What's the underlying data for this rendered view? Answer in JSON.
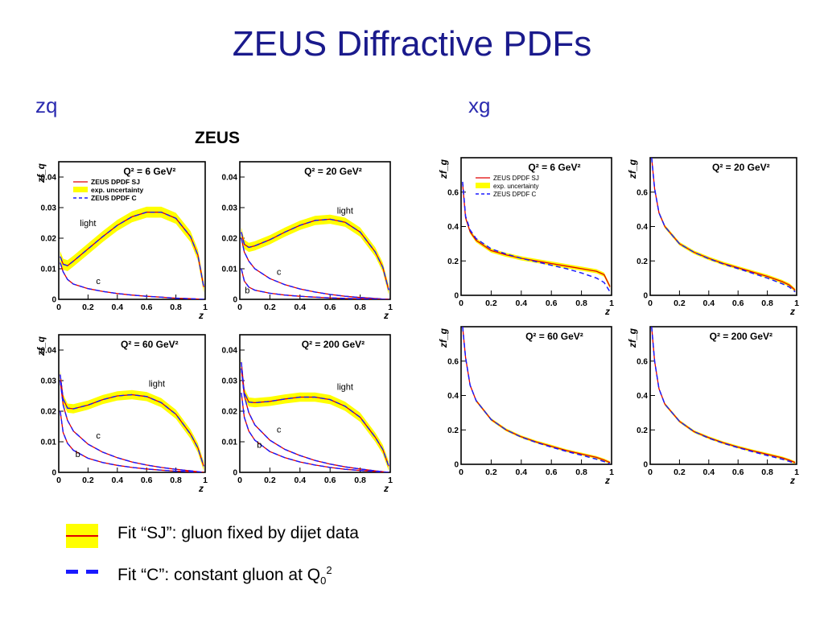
{
  "slide": {
    "title": "ZEUS Diffractive PDFs",
    "left_section": "zq",
    "right_section": "xg",
    "experiment_label": "ZEUS"
  },
  "legend": {
    "sj_text": "Fit “SJ”: gluon fixed by dijet data",
    "c_text_main": "Fit “C”: constant gluon at Q",
    "c_text_sub": "0",
    "c_text_sup": "2"
  },
  "colors": {
    "band": "#ffff00",
    "sj_line": "#e00000",
    "c_line": "#1a1aff",
    "title": "#1a1a8c"
  },
  "chart_data": [
    {
      "type": "line",
      "panel": "zq-q2-6",
      "label": "Q² = 6 GeV²",
      "ylabel": "zf_q",
      "xlabel": "z",
      "xlim": [
        0,
        1
      ],
      "ylim": [
        0,
        0.045
      ],
      "xticks": [
        "0",
        "0.2",
        "0.4",
        "0.6",
        "0.8",
        "1"
      ],
      "yticks": [
        "0",
        "0.01",
        "0.02",
        "0.03",
        "0.04"
      ],
      "legend": [
        "ZEUS DPDF SJ",
        "exp. uncertainty",
        "ZEUS DPDF C"
      ],
      "annotations": [
        {
          "text": "light",
          "x": 0.2,
          "y": 0.024
        },
        {
          "text": "c",
          "x": 0.27,
          "y": 0.005
        }
      ],
      "x": [
        0.01,
        0.03,
        0.06,
        0.1,
        0.2,
        0.3,
        0.4,
        0.5,
        0.6,
        0.7,
        0.8,
        0.9,
        0.95,
        0.99
      ],
      "series": [
        {
          "name": "light",
          "values": [
            0.014,
            0.0115,
            0.011,
            0.0125,
            0.0165,
            0.0205,
            0.0242,
            0.027,
            0.0285,
            0.0285,
            0.0265,
            0.0205,
            0.0145,
            0.004
          ],
          "band": 0.0018
        },
        {
          "name": "c",
          "values": [
            0.012,
            0.009,
            0.0065,
            0.005,
            0.0035,
            0.0026,
            0.0019,
            0.0014,
            0.001,
            0.0007,
            0.0004,
            0.0002,
            0.0001,
            0.0
          ]
        }
      ]
    },
    {
      "type": "line",
      "panel": "zq-q2-20",
      "label": "Q² = 20 GeV²",
      "ylabel": "",
      "xlabel": "z",
      "xlim": [
        0,
        1
      ],
      "ylim": [
        0,
        0.045
      ],
      "xticks": [
        "0",
        "0.2",
        "0.4",
        "0.6",
        "0.8",
        "1"
      ],
      "yticks": [
        "0",
        "0.01",
        "0.02",
        "0.03",
        "0.04"
      ],
      "annotations": [
        {
          "text": "light",
          "x": 0.7,
          "y": 0.028
        },
        {
          "text": "c",
          "x": 0.26,
          "y": 0.008
        },
        {
          "text": "b",
          "x": 0.05,
          "y": 0.002
        }
      ],
      "x": [
        0.01,
        0.03,
        0.06,
        0.1,
        0.2,
        0.3,
        0.4,
        0.5,
        0.6,
        0.7,
        0.8,
        0.9,
        0.95,
        0.99
      ],
      "series": [
        {
          "name": "light",
          "values": [
            0.022,
            0.018,
            0.017,
            0.0175,
            0.0195,
            0.022,
            0.0242,
            0.0258,
            0.0262,
            0.0252,
            0.022,
            0.0155,
            0.0105,
            0.003
          ],
          "band": 0.0015
        },
        {
          "name": "c",
          "values": [
            0.02,
            0.0155,
            0.0125,
            0.01,
            0.0068,
            0.0048,
            0.0034,
            0.0024,
            0.0016,
            0.001,
            0.0006,
            0.0003,
            0.0001,
            0.0
          ]
        },
        {
          "name": "b",
          "values": [
            0.01,
            0.006,
            0.004,
            0.003,
            0.002,
            0.0014,
            0.001,
            0.0007,
            0.0005,
            0.0003,
            0.0002,
            0.0001,
            0.0,
            0.0
          ]
        }
      ]
    },
    {
      "type": "line",
      "panel": "zq-q2-60",
      "label": "Q² = 60 GeV²",
      "ylabel": "zf_q",
      "xlabel": "z",
      "xlim": [
        0,
        1
      ],
      "ylim": [
        0,
        0.045
      ],
      "xticks": [
        "0",
        "0.2",
        "0.4",
        "0.6",
        "0.8",
        "1"
      ],
      "yticks": [
        "0",
        "0.01",
        "0.02",
        "0.03",
        "0.04"
      ],
      "annotations": [
        {
          "text": "light",
          "x": 0.67,
          "y": 0.028
        },
        {
          "text": "c",
          "x": 0.27,
          "y": 0.011
        },
        {
          "text": "b",
          "x": 0.13,
          "y": 0.005
        }
      ],
      "x": [
        0.01,
        0.03,
        0.06,
        0.1,
        0.2,
        0.3,
        0.4,
        0.5,
        0.6,
        0.7,
        0.8,
        0.9,
        0.95,
        0.99
      ],
      "series": [
        {
          "name": "light",
          "values": [
            0.032,
            0.024,
            0.021,
            0.0208,
            0.022,
            0.0238,
            0.025,
            0.0254,
            0.0248,
            0.0228,
            0.019,
            0.0125,
            0.008,
            0.002
          ],
          "band": 0.0015
        },
        {
          "name": "c",
          "values": [
            0.03,
            0.022,
            0.017,
            0.0135,
            0.0092,
            0.0066,
            0.0048,
            0.0034,
            0.0024,
            0.0016,
            0.001,
            0.0005,
            0.0002,
            0.0
          ]
        },
        {
          "name": "b",
          "values": [
            0.02,
            0.013,
            0.0095,
            0.0072,
            0.0046,
            0.0032,
            0.0023,
            0.0016,
            0.0011,
            0.0007,
            0.0004,
            0.0002,
            0.0001,
            0.0
          ]
        }
      ]
    },
    {
      "type": "line",
      "panel": "zq-q2-200",
      "label": "Q² = 200 GeV²",
      "ylabel": "",
      "xlabel": "z",
      "xlim": [
        0,
        1
      ],
      "ylim": [
        0,
        0.045
      ],
      "xticks": [
        "0",
        "0.2",
        "0.4",
        "0.6",
        "0.8",
        "1"
      ],
      "yticks": [
        "0",
        "0.01",
        "0.02",
        "0.03",
        "0.04"
      ],
      "annotations": [
        {
          "text": "light",
          "x": 0.7,
          "y": 0.027
        },
        {
          "text": "c",
          "x": 0.26,
          "y": 0.013
        },
        {
          "text": "b",
          "x": 0.13,
          "y": 0.008
        }
      ],
      "x": [
        0.01,
        0.03,
        0.06,
        0.1,
        0.2,
        0.3,
        0.4,
        0.5,
        0.6,
        0.7,
        0.8,
        0.9,
        0.95,
        0.99
      ],
      "series": [
        {
          "name": "light",
          "values": [
            0.036,
            0.026,
            0.023,
            0.0228,
            0.0232,
            0.024,
            0.0246,
            0.0246,
            0.0238,
            0.0216,
            0.018,
            0.0115,
            0.0075,
            0.002
          ],
          "band": 0.0015
        },
        {
          "name": "c",
          "values": [
            0.034,
            0.025,
            0.0195,
            0.0155,
            0.0105,
            0.0075,
            0.0055,
            0.0039,
            0.0027,
            0.0018,
            0.0011,
            0.0005,
            0.0002,
            0.0
          ]
        },
        {
          "name": "b",
          "values": [
            0.026,
            0.018,
            0.0135,
            0.0105,
            0.0068,
            0.0048,
            0.0034,
            0.0024,
            0.0016,
            0.001,
            0.0006,
            0.0003,
            0.0001,
            0.0
          ]
        }
      ]
    },
    {
      "type": "line",
      "panel": "xg-q2-6",
      "label": "Q² = 6 GeV²",
      "ylabel": "zf_g",
      "xlabel": "z",
      "xlim": [
        0,
        1
      ],
      "ylim": [
        0,
        0.8
      ],
      "xticks": [
        "0",
        "0.2",
        "0.4",
        "0.6",
        "0.8",
        "1"
      ],
      "yticks": [
        "0",
        "0.2",
        "0.4",
        "0.6"
      ],
      "legend": [
        "ZEUS DPDF SJ",
        "exp. uncertainty",
        "ZEUS DPDF C"
      ],
      "x": [
        0.01,
        0.03,
        0.06,
        0.1,
        0.2,
        0.3,
        0.4,
        0.5,
        0.6,
        0.7,
        0.8,
        0.9,
        0.95,
        0.99
      ],
      "series": [
        {
          "name": "ZEUS DPDF SJ",
          "values": [
            0.65,
            0.45,
            0.37,
            0.32,
            0.26,
            0.235,
            0.215,
            0.2,
            0.185,
            0.17,
            0.155,
            0.14,
            0.12,
            0.05
          ],
          "band": 0.012
        },
        {
          "name": "ZEUS DPDF C",
          "values": [
            0.66,
            0.46,
            0.38,
            0.33,
            0.27,
            0.24,
            0.215,
            0.195,
            0.175,
            0.155,
            0.13,
            0.1,
            0.075,
            0.02
          ]
        }
      ]
    },
    {
      "type": "line",
      "panel": "xg-q2-20",
      "label": "Q² = 20 GeV²",
      "ylabel": "zf_g",
      "xlabel": "z",
      "xlim": [
        0,
        1
      ],
      "ylim": [
        0,
        0.8
      ],
      "xticks": [
        "0",
        "0.2",
        "0.4",
        "0.6",
        "0.8",
        "1"
      ],
      "yticks": [
        "0",
        "0.2",
        "0.4",
        "0.6"
      ],
      "x": [
        0.01,
        0.03,
        0.06,
        0.1,
        0.2,
        0.3,
        0.4,
        0.5,
        0.6,
        0.7,
        0.8,
        0.9,
        0.95,
        0.99
      ],
      "series": [
        {
          "name": "ZEUS DPDF SJ",
          "values": [
            0.8,
            0.62,
            0.48,
            0.4,
            0.3,
            0.25,
            0.215,
            0.185,
            0.16,
            0.135,
            0.11,
            0.08,
            0.06,
            0.03
          ],
          "band": 0.01
        },
        {
          "name": "ZEUS DPDF C",
          "values": [
            0.8,
            0.62,
            0.48,
            0.4,
            0.3,
            0.25,
            0.213,
            0.182,
            0.155,
            0.128,
            0.1,
            0.068,
            0.048,
            0.02
          ]
        }
      ]
    },
    {
      "type": "line",
      "panel": "xg-q2-60",
      "label": "Q² = 60 GeV²",
      "ylabel": "zf_g",
      "xlabel": "z",
      "xlim": [
        0,
        1
      ],
      "ylim": [
        0,
        0.8
      ],
      "xticks": [
        "0",
        "0.2",
        "0.4",
        "0.6",
        "0.8",
        "1"
      ],
      "yticks": [
        "0",
        "0.2",
        "0.4",
        "0.6"
      ],
      "x": [
        0.01,
        0.03,
        0.06,
        0.1,
        0.2,
        0.3,
        0.4,
        0.5,
        0.6,
        0.7,
        0.8,
        0.9,
        0.95,
        0.99
      ],
      "series": [
        {
          "name": "ZEUS DPDF SJ",
          "values": [
            0.8,
            0.62,
            0.46,
            0.37,
            0.26,
            0.2,
            0.16,
            0.13,
            0.105,
            0.08,
            0.06,
            0.04,
            0.025,
            0.01
          ],
          "band": 0.008
        },
        {
          "name": "ZEUS DPDF C",
          "values": [
            0.8,
            0.62,
            0.46,
            0.37,
            0.26,
            0.2,
            0.158,
            0.127,
            0.1,
            0.075,
            0.053,
            0.03,
            0.016,
            0.003
          ]
        }
      ]
    },
    {
      "type": "line",
      "panel": "xg-q2-200",
      "label": "Q² = 200 GeV²",
      "ylabel": "zf_g",
      "xlabel": "z",
      "xlim": [
        0,
        1
      ],
      "ylim": [
        0,
        0.8
      ],
      "xticks": [
        "0",
        "0.2",
        "0.4",
        "0.6",
        "0.8",
        "1"
      ],
      "yticks": [
        "0",
        "0.2",
        "0.4",
        "0.6"
      ],
      "x": [
        0.01,
        0.03,
        0.06,
        0.1,
        0.2,
        0.3,
        0.4,
        0.5,
        0.6,
        0.7,
        0.8,
        0.9,
        0.95,
        0.99
      ],
      "series": [
        {
          "name": "ZEUS DPDF SJ",
          "values": [
            0.8,
            0.6,
            0.44,
            0.35,
            0.25,
            0.19,
            0.155,
            0.125,
            0.1,
            0.078,
            0.058,
            0.038,
            0.024,
            0.01
          ],
          "band": 0.008
        },
        {
          "name": "ZEUS DPDF C",
          "values": [
            0.8,
            0.6,
            0.44,
            0.35,
            0.25,
            0.19,
            0.152,
            0.122,
            0.097,
            0.073,
            0.051,
            0.03,
            0.017,
            0.004
          ]
        }
      ]
    }
  ]
}
